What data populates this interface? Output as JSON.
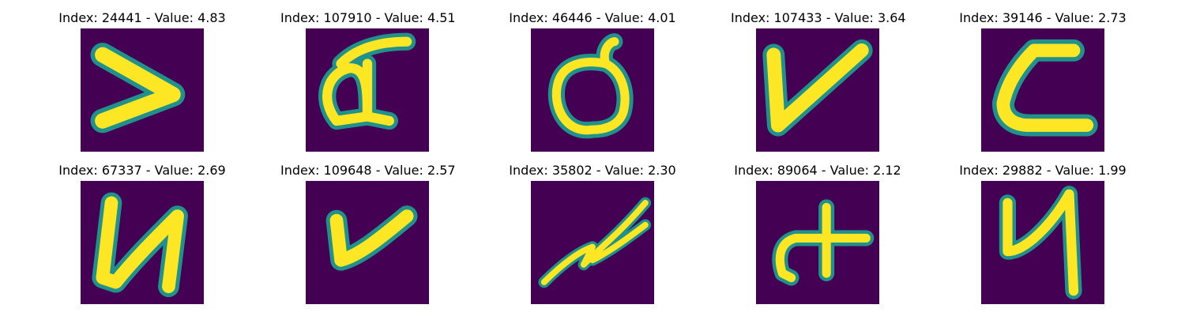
{
  "colors": {
    "background": "#440154",
    "stroke_core": "#fde725",
    "stroke_edge": "#21918c",
    "stroke_fade": "#3b528b"
  },
  "panels": [
    {
      "title": "Index: 24441 - Value: 4.83",
      "glyph": "greater-than-stroke"
    },
    {
      "title": "Index: 107910 - Value: 4.51",
      "glyph": "handwritten-a-stroke"
    },
    {
      "title": "Index: 46446 - Value: 4.01",
      "glyph": "handwritten-loop-stroke"
    },
    {
      "title": "Index: 107433 - Value: 3.64",
      "glyph": "check-v-stroke"
    },
    {
      "title": "Index: 39146 - Value: 2.73",
      "glyph": "c-curve-stroke"
    },
    {
      "title": "Index: 67337 - Value: 2.69",
      "glyph": "handwritten-u-stroke"
    },
    {
      "title": "Index: 109648 - Value: 2.57",
      "glyph": "check-v-stroke"
    },
    {
      "title": "Index: 35802 - Value: 2.30",
      "glyph": "scribble-stroke"
    },
    {
      "title": "Index: 89064 - Value: 2.12",
      "glyph": "plus-curve-stroke"
    },
    {
      "title": "Index: 29882 - Value: 1.99",
      "glyph": "handwritten-u-stroke"
    }
  ]
}
